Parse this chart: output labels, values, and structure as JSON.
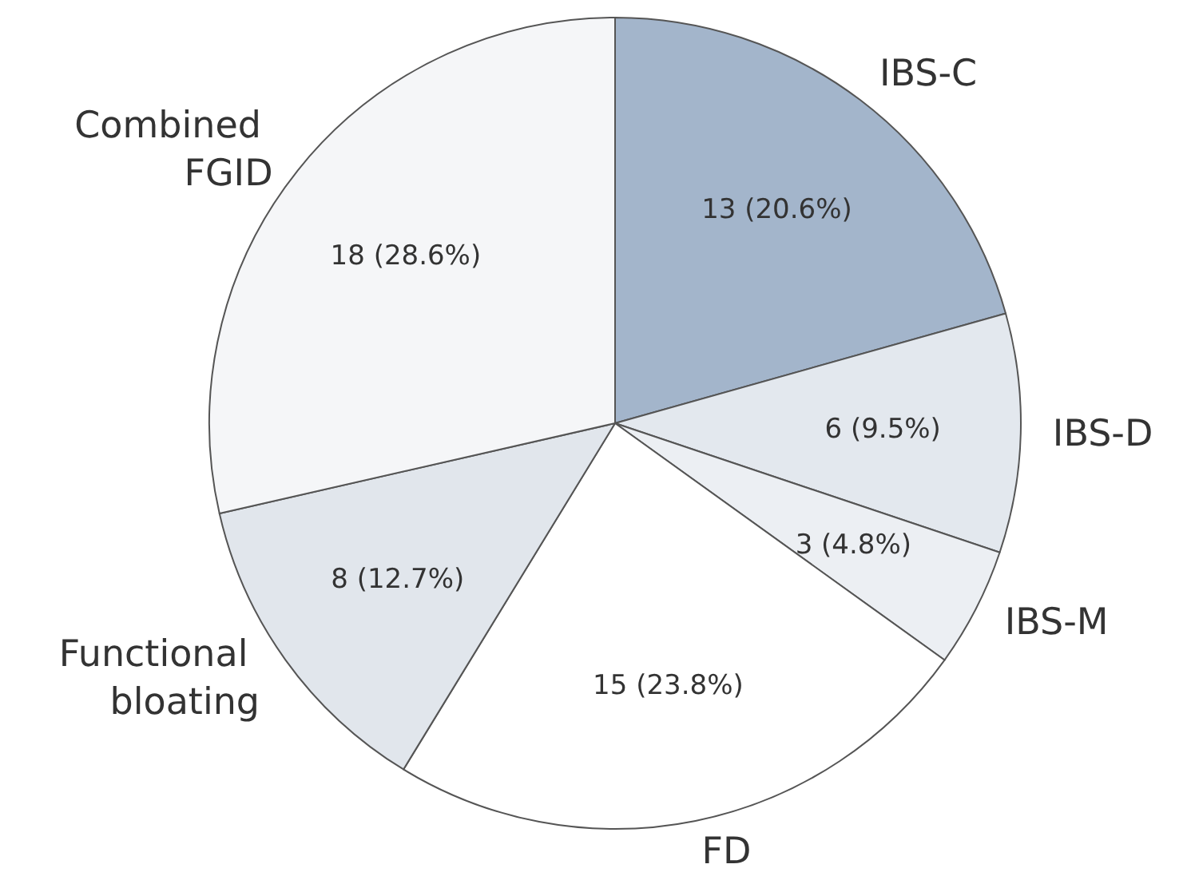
{
  "chart_data": {
    "type": "pie",
    "categories": [
      "IBS-C",
      "IBS-D",
      "IBS-M",
      "FD",
      "Functional bloating",
      "Combined FGID"
    ],
    "values": [
      13,
      6,
      3,
      15,
      8,
      18
    ],
    "value_labels": [
      "13 (20.6%)",
      "6 (9.5%)",
      "3 (4.8%)",
      "15 (23.8%)",
      "8 (12.7%)",
      "18 (28.6%)"
    ],
    "colors": [
      "#a3b5cb",
      "#e3e8ee",
      "#eceff3",
      "#ffffff",
      "#e1e6ec",
      "#f5f6f8"
    ],
    "legend": false
  }
}
